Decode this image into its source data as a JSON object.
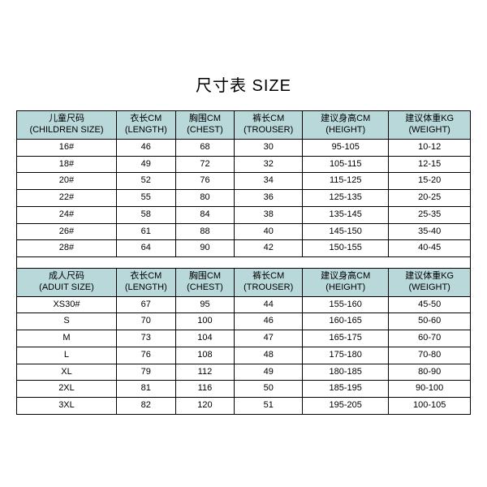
{
  "title": "尺寸表 SIZE",
  "colors": {
    "header_bg": "#b9d8da",
    "border": "#000000",
    "text": "#000000",
    "background": "#ffffff"
  },
  "columns": [
    {
      "zh": "儿童尺码",
      "en": "(CHILDREN SIZE)"
    },
    {
      "zh": "衣长CM",
      "en": "(LENGTH)"
    },
    {
      "zh": "胸围CM",
      "en": "(CHEST)"
    },
    {
      "zh": "裤长CM",
      "en": "(TROUSER)"
    },
    {
      "zh": "建议身高CM",
      "en": "(HEIGHT)"
    },
    {
      "zh": "建议体重KG",
      "en": "(WEIGHT)"
    }
  ],
  "children_rows": [
    [
      "16#",
      "46",
      "68",
      "30",
      "95-105",
      "10-12"
    ],
    [
      "18#",
      "49",
      "72",
      "32",
      "105-115",
      "12-15"
    ],
    [
      "20#",
      "52",
      "76",
      "34",
      "115-125",
      "15-20"
    ],
    [
      "22#",
      "55",
      "80",
      "36",
      "125-135",
      "20-25"
    ],
    [
      "24#",
      "58",
      "84",
      "38",
      "135-145",
      "25-35"
    ],
    [
      "26#",
      "61",
      "88",
      "40",
      "145-150",
      "35-40"
    ],
    [
      "28#",
      "64",
      "90",
      "42",
      "150-155",
      "40-45"
    ]
  ],
  "adult_columns": [
    {
      "zh": "成人尺码",
      "en": "(ADUIT SIZE)"
    },
    {
      "zh": "衣长CM",
      "en": "(LENGTH)"
    },
    {
      "zh": "胸围CM",
      "en": "(CHEST)"
    },
    {
      "zh": "裤长CM",
      "en": "(TROUSER)"
    },
    {
      "zh": "建议身高CM",
      "en": "(HEIGHT)"
    },
    {
      "zh": "建议体重KG",
      "en": "(WEIGHT)"
    }
  ],
  "adult_rows": [
    [
      "XS30#",
      "67",
      "95",
      "44",
      "155-160",
      "45-50"
    ],
    [
      "S",
      "70",
      "100",
      "46",
      "160-165",
      "50-60"
    ],
    [
      "M",
      "73",
      "104",
      "47",
      "165-175",
      "60-70"
    ],
    [
      "L",
      "76",
      "108",
      "48",
      "175-180",
      "70-80"
    ],
    [
      "XL",
      "79",
      "112",
      "49",
      "180-185",
      "80-90"
    ],
    [
      "2XL",
      "81",
      "116",
      "50",
      "185-195",
      "90-100"
    ],
    [
      "3XL",
      "82",
      "120",
      "51",
      "195-205",
      "100-105"
    ]
  ]
}
